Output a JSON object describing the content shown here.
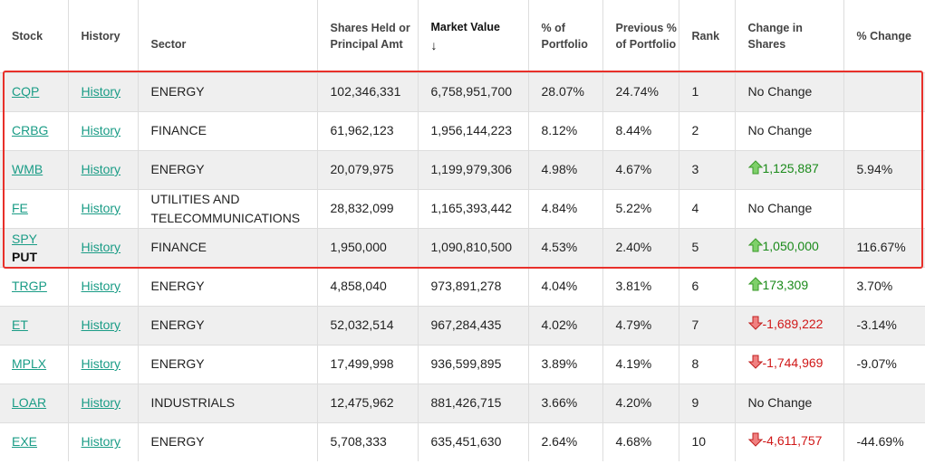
{
  "columns": {
    "stock": "Stock",
    "history": "History",
    "sector": "Sector",
    "shares": "Shares Held or Principal Amt",
    "market_value": "Market Value",
    "sort_arrow": "↓",
    "pct_portfolio": "% of Portfolio",
    "prev_pct": "Previous % of Portfolio",
    "rank": "Rank",
    "change_shares": "Change in Shares",
    "pct_change": "% Change"
  },
  "rows": [
    {
      "ticker": "CQP",
      "put": "",
      "history": "History",
      "sector": "ENERGY",
      "shares": "102,346,331",
      "value": "6,758,951,700",
      "pct": "28.07%",
      "prev": "24.74%",
      "rank": "1",
      "change": "No Change",
      "dir": "none",
      "pctchg": ""
    },
    {
      "ticker": "CRBG",
      "put": "",
      "history": "History",
      "sector": "FINANCE",
      "shares": "61,962,123",
      "value": "1,956,144,223",
      "pct": "8.12%",
      "prev": "8.44%",
      "rank": "2",
      "change": "No Change",
      "dir": "none",
      "pctchg": ""
    },
    {
      "ticker": "WMB",
      "put": "",
      "history": "History",
      "sector": "ENERGY",
      "shares": "20,079,975",
      "value": "1,199,979,306",
      "pct": "4.98%",
      "prev": "4.67%",
      "rank": "3",
      "change": "1,125,887",
      "dir": "up",
      "pctchg": "5.94%"
    },
    {
      "ticker": "FE",
      "put": "",
      "history": "History",
      "sector": "UTILITIES AND TELECOMMUNICATIONS",
      "shares": "28,832,099",
      "value": "1,165,393,442",
      "pct": "4.84%",
      "prev": "5.22%",
      "rank": "4",
      "change": "No Change",
      "dir": "none",
      "pctchg": ""
    },
    {
      "ticker": "SPY",
      "put": "PUT",
      "history": "History",
      "sector": "FINANCE",
      "shares": "1,950,000",
      "value": "1,090,810,500",
      "pct": "4.53%",
      "prev": "2.40%",
      "rank": "5",
      "change": "1,050,000",
      "dir": "up",
      "pctchg": "116.67%"
    },
    {
      "ticker": "TRGP",
      "put": "",
      "history": "History",
      "sector": "ENERGY",
      "shares": "4,858,040",
      "value": "973,891,278",
      "pct": "4.04%",
      "prev": "3.81%",
      "rank": "6",
      "change": "173,309",
      "dir": "up",
      "pctchg": "3.70%"
    },
    {
      "ticker": "ET",
      "put": "",
      "history": "History",
      "sector": "ENERGY",
      "shares": "52,032,514",
      "value": "967,284,435",
      "pct": "4.02%",
      "prev": "4.79%",
      "rank": "7",
      "change": "-1,689,222",
      "dir": "down",
      "pctchg": "-3.14%"
    },
    {
      "ticker": "MPLX",
      "put": "",
      "history": "History",
      "sector": "ENERGY",
      "shares": "17,499,998",
      "value": "936,599,895",
      "pct": "3.89%",
      "prev": "4.19%",
      "rank": "8",
      "change": "-1,744,969",
      "dir": "down",
      "pctchg": "-9.07%"
    },
    {
      "ticker": "LOAR",
      "put": "",
      "history": "History",
      "sector": "INDUSTRIALS",
      "shares": "12,475,962",
      "value": "881,426,715",
      "pct": "3.66%",
      "prev": "4.20%",
      "rank": "9",
      "change": "No Change",
      "dir": "none",
      "pctchg": ""
    },
    {
      "ticker": "EXE",
      "put": "",
      "history": "History",
      "sector": "ENERGY",
      "shares": "5,708,333",
      "value": "635,451,630",
      "pct": "2.64%",
      "prev": "4.68%",
      "rank": "10",
      "change": "-4,611,757",
      "dir": "down",
      "pctchg": "-44.69%"
    }
  ],
  "colors": {
    "link": "#1a9c86",
    "up": "#1a8a1a",
    "down": "#d01818",
    "highlight": "#e8302a",
    "stripe": "#efefef"
  }
}
